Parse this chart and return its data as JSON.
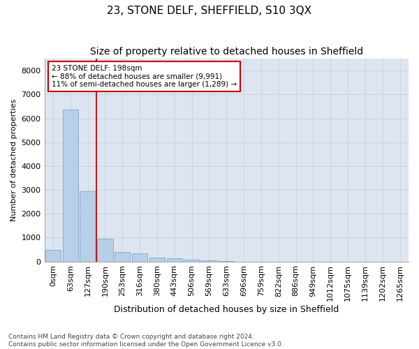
{
  "title": "23, STONE DELF, SHEFFIELD, S10 3QX",
  "subtitle": "Size of property relative to detached houses in Sheffield",
  "xlabel": "Distribution of detached houses by size in Sheffield",
  "ylabel": "Number of detached properties",
  "categories": [
    "0sqm",
    "63sqm",
    "127sqm",
    "190sqm",
    "253sqm",
    "316sqm",
    "380sqm",
    "443sqm",
    "506sqm",
    "569sqm",
    "633sqm",
    "696sqm",
    "759sqm",
    "822sqm",
    "886sqm",
    "949sqm",
    "1012sqm",
    "1075sqm",
    "1139sqm",
    "1202sqm",
    "1265sqm"
  ],
  "values": [
    480,
    6380,
    2950,
    950,
    390,
    340,
    160,
    120,
    75,
    50,
    30,
    0,
    0,
    0,
    0,
    0,
    0,
    0,
    0,
    0,
    0
  ],
  "bar_color": "#b8cfe8",
  "bar_edge_color": "#7aaad0",
  "marker_line_color": "#cc0000",
  "annotation_text": "23 STONE DELF: 198sqm\n← 88% of detached houses are smaller (9,991)\n11% of semi-detached houses are larger (1,289) →",
  "annotation_box_color": "#ffffff",
  "annotation_box_edge_color": "#cc0000",
  "ylim": [
    0,
    8500
  ],
  "yticks": [
    0,
    1000,
    2000,
    3000,
    4000,
    5000,
    6000,
    7000,
    8000
  ],
  "grid_color": "#c8d0dc",
  "bg_color": "#dde6f0",
  "footer_text": "Contains HM Land Registry data © Crown copyright and database right 2024.\nContains public sector information licensed under the Open Government Licence v3.0.",
  "title_fontsize": 11,
  "subtitle_fontsize": 10,
  "ylabel_fontsize": 8,
  "xlabel_fontsize": 9,
  "tick_fontsize": 8,
  "footer_fontsize": 6.5
}
